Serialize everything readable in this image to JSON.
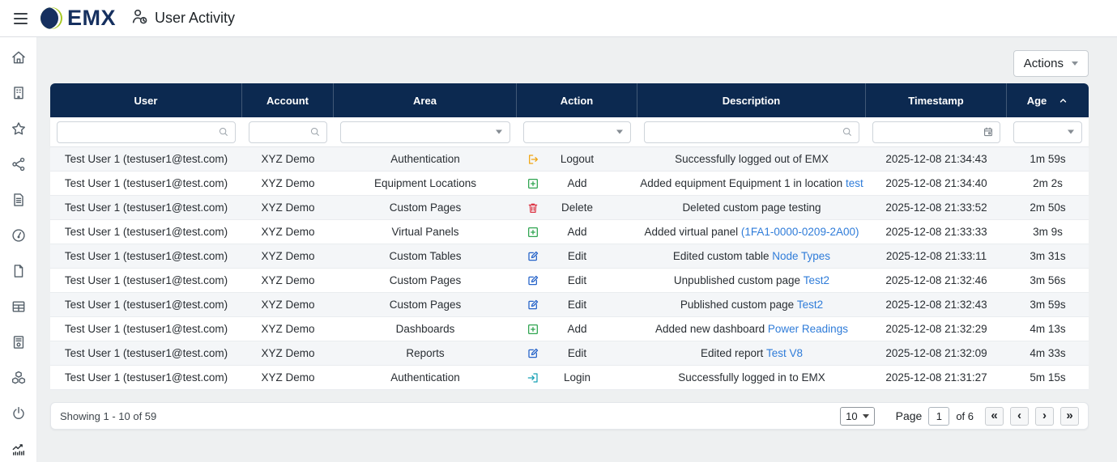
{
  "topbar": {
    "brand": "EMX",
    "title": "User Activity"
  },
  "sidebar": {
    "items": [
      {
        "name": "home",
        "icon": "home-icon"
      },
      {
        "name": "organization",
        "icon": "building-icon"
      },
      {
        "name": "favorites",
        "icon": "star-icon"
      },
      {
        "name": "sharing",
        "icon": "share-icon"
      },
      {
        "name": "reports",
        "icon": "document-icon"
      },
      {
        "name": "gauges",
        "icon": "gauge-icon"
      },
      {
        "name": "pages",
        "icon": "file-icon"
      },
      {
        "name": "tables",
        "icon": "table-icon"
      },
      {
        "name": "meters",
        "icon": "meter-icon"
      },
      {
        "name": "assets",
        "icon": "cubes-icon"
      },
      {
        "name": "power",
        "icon": "power-icon"
      },
      {
        "name": "user-activity",
        "icon": "activity-icon",
        "active": true
      }
    ]
  },
  "toolbar": {
    "actions_label": "Actions"
  },
  "table": {
    "columns": [
      {
        "label": "User",
        "filter": "search"
      },
      {
        "label": "Account",
        "filter": "search"
      },
      {
        "label": "Area",
        "filter": "select"
      },
      {
        "label": "Action",
        "filter": "select"
      },
      {
        "label": "Description",
        "filter": "search"
      },
      {
        "label": "Timestamp",
        "filter": "date"
      },
      {
        "label": "Age",
        "filter": "select",
        "sorted": "asc"
      }
    ],
    "rows": [
      {
        "user": "Test User 1 (testuser1@test.com)",
        "account": "XYZ Demo",
        "area": "Authentication",
        "action": "Logout",
        "icon": "logout-icon",
        "desc": {
          "before": "Successfully logged out of EMX",
          "link": "",
          "after": ""
        },
        "timestamp": "2025-12-08 21:34:43",
        "age": "1m 59s"
      },
      {
        "user": "Test User 1 (testuser1@test.com)",
        "account": "XYZ Demo",
        "area": "Equipment Locations",
        "action": "Add",
        "icon": "add-icon",
        "desc": {
          "before": "Added equipment Equipment 1 in location ",
          "link": "test",
          "after": ""
        },
        "timestamp": "2025-12-08 21:34:40",
        "age": "2m 2s"
      },
      {
        "user": "Test User 1 (testuser1@test.com)",
        "account": "XYZ Demo",
        "area": "Custom Pages",
        "action": "Delete",
        "icon": "delete-icon",
        "desc": {
          "before": "Deleted custom page testing",
          "link": "",
          "after": ""
        },
        "timestamp": "2025-12-08 21:33:52",
        "age": "2m 50s"
      },
      {
        "user": "Test User 1 (testuser1@test.com)",
        "account": "XYZ Demo",
        "area": "Virtual Panels",
        "action": "Add",
        "icon": "add-icon",
        "desc": {
          "before": "Added virtual panel ",
          "link": "(1FA1-0000-0209-2A00)",
          "after": ""
        },
        "timestamp": "2025-12-08 21:33:33",
        "age": "3m 9s"
      },
      {
        "user": "Test User 1 (testuser1@test.com)",
        "account": "XYZ Demo",
        "area": "Custom Tables",
        "action": "Edit",
        "icon": "edit-icon",
        "desc": {
          "before": "Edited custom table ",
          "link": "Node Types",
          "after": ""
        },
        "timestamp": "2025-12-08 21:33:11",
        "age": "3m 31s"
      },
      {
        "user": "Test User 1 (testuser1@test.com)",
        "account": "XYZ Demo",
        "area": "Custom Pages",
        "action": "Edit",
        "icon": "edit-icon",
        "desc": {
          "before": "Unpublished custom page ",
          "link": "Test2",
          "after": ""
        },
        "timestamp": "2025-12-08 21:32:46",
        "age": "3m 56s"
      },
      {
        "user": "Test User 1 (testuser1@test.com)",
        "account": "XYZ Demo",
        "area": "Custom Pages",
        "action": "Edit",
        "icon": "edit-icon",
        "desc": {
          "before": "Published custom page ",
          "link": "Test2",
          "after": ""
        },
        "timestamp": "2025-12-08 21:32:43",
        "age": "3m 59s"
      },
      {
        "user": "Test User 1 (testuser1@test.com)",
        "account": "XYZ Demo",
        "area": "Dashboards",
        "action": "Add",
        "icon": "add-icon",
        "desc": {
          "before": "Added new dashboard ",
          "link": "Power Readings",
          "after": ""
        },
        "timestamp": "2025-12-08 21:32:29",
        "age": "4m 13s"
      },
      {
        "user": "Test User 1 (testuser1@test.com)",
        "account": "XYZ Demo",
        "area": "Reports",
        "action": "Edit",
        "icon": "edit-icon",
        "desc": {
          "before": "Edited report ",
          "link": "Test V8",
          "after": ""
        },
        "timestamp": "2025-12-08 21:32:09",
        "age": "4m 33s"
      },
      {
        "user": "Test User 1 (testuser1@test.com)",
        "account": "XYZ Demo",
        "area": "Authentication",
        "action": "Login",
        "icon": "login-icon",
        "desc": {
          "before": "Successfully logged in to EMX",
          "link": "",
          "after": ""
        },
        "timestamp": "2025-12-08 21:31:27",
        "age": "5m 15s"
      }
    ]
  },
  "footer": {
    "showing": "Showing 1 - 10 of 59",
    "page_size": "10",
    "page_label": "Page",
    "page_value": "1",
    "of_label": "of 6",
    "pager": {
      "first": "«",
      "prev": "‹",
      "next": "›",
      "last": "»"
    }
  },
  "colors": {
    "header_bg": "#0c2950",
    "brand_navy": "#16305f",
    "brand_green": "#a6c822",
    "link": "#2f7cd9",
    "logout": "#f0a511",
    "add": "#2ea44f",
    "delete": "#dc3545",
    "edit": "#2563c9",
    "login": "#16a0b5"
  }
}
